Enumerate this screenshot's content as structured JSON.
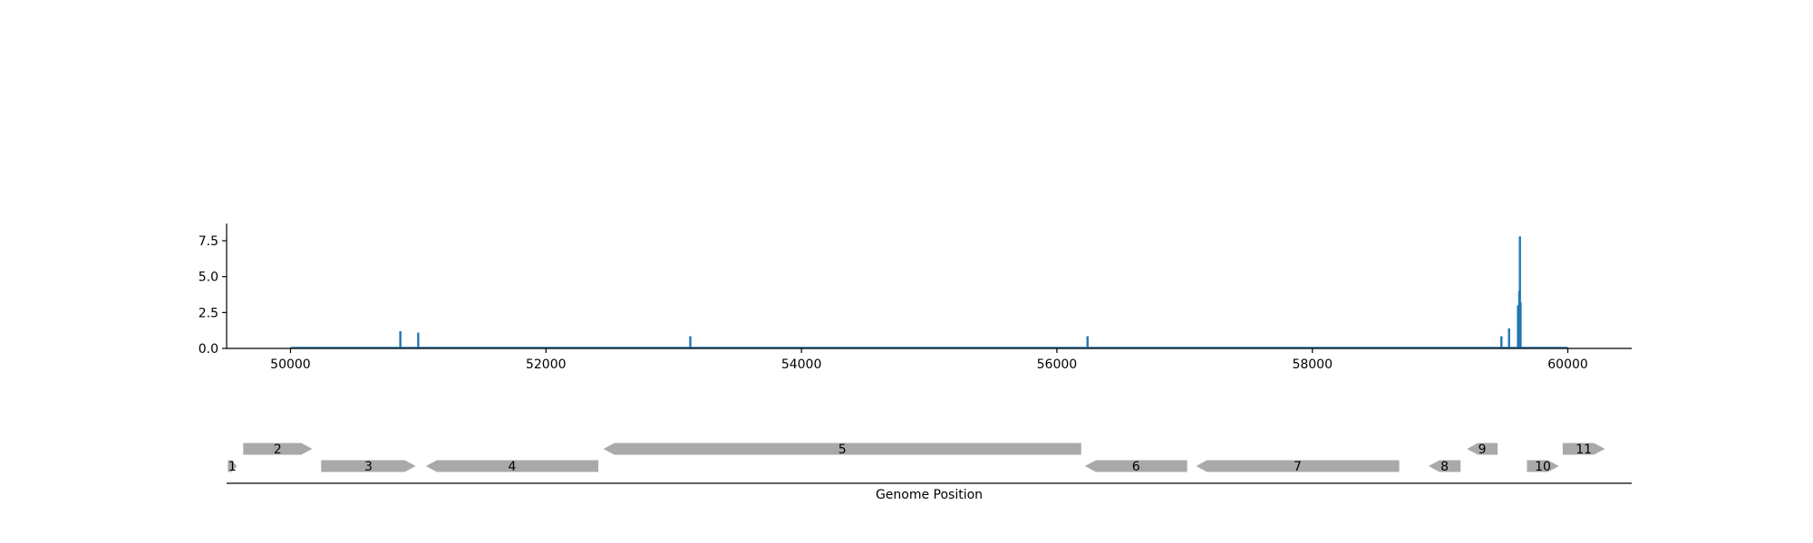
{
  "colors": {
    "signal": "#1f77b4",
    "gene": "#a9a9a9",
    "axis": "#000000",
    "background": "#ffffff"
  },
  "chart_data": [
    {
      "type": "line",
      "title": "",
      "xlabel": "",
      "ylabel": "",
      "xlim": [
        49500,
        60500
      ],
      "ylim": [
        0,
        8.7
      ],
      "xticks": [
        50000,
        52000,
        54000,
        56000,
        58000,
        60000
      ],
      "xtick_labels": [
        "50000",
        "52000",
        "54000",
        "56000",
        "58000",
        "60000"
      ],
      "yticks": [
        0,
        2.5,
        5,
        7.5
      ],
      "ytick_labels": [
        "0.0",
        "2.5",
        "5.0",
        "7.5"
      ],
      "grid": false,
      "baseline": {
        "x_start": 50000,
        "x_end": 60000,
        "y": 0.05
      },
      "peaks": [
        {
          "x": 50860,
          "y": 1.2
        },
        {
          "x": 51000,
          "y": 1.1
        },
        {
          "x": 53130,
          "y": 0.85
        },
        {
          "x": 56240,
          "y": 0.85
        },
        {
          "x": 59480,
          "y": 0.85
        },
        {
          "x": 59540,
          "y": 1.4
        },
        {
          "x": 59610,
          "y": 3.0
        },
        {
          "x": 59620,
          "y": 4.0
        },
        {
          "x": 59625,
          "y": 7.8
        },
        {
          "x": 59630,
          "y": 3.2
        }
      ]
    },
    {
      "type": "gene-track",
      "xlabel": "Genome Position",
      "xlim": [
        49500,
        60500
      ],
      "genes": [
        {
          "label": "1",
          "start": 49510,
          "end": 49580,
          "strand": "+",
          "row": 0
        },
        {
          "label": "2",
          "start": 49630,
          "end": 50170,
          "strand": "+",
          "row": 1
        },
        {
          "label": "3",
          "start": 50240,
          "end": 50980,
          "strand": "+",
          "row": 0
        },
        {
          "label": "4",
          "start": 51060,
          "end": 52410,
          "strand": "-",
          "row": 0
        },
        {
          "label": "5",
          "start": 52450,
          "end": 56190,
          "strand": "-",
          "row": 1
        },
        {
          "label": "6",
          "start": 56220,
          "end": 57020,
          "strand": "-",
          "row": 0
        },
        {
          "label": "7",
          "start": 57090,
          "end": 58680,
          "strand": "-",
          "row": 0
        },
        {
          "label": "8",
          "start": 58910,
          "end": 59160,
          "strand": "-",
          "row": 0
        },
        {
          "label": "9",
          "start": 59210,
          "end": 59450,
          "strand": "-",
          "row": 1
        },
        {
          "label": "10",
          "start": 59680,
          "end": 59930,
          "strand": "+",
          "row": 0
        },
        {
          "label": "11",
          "start": 59960,
          "end": 60290,
          "strand": "+",
          "row": 1
        }
      ]
    }
  ]
}
